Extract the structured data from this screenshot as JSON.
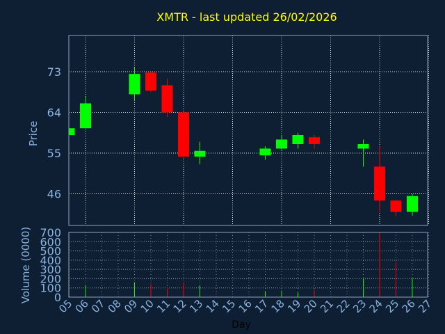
{
  "chart_data": {
    "type": "candlestick",
    "title": "XMTR - last updated 26/02/2026",
    "xlabel": "Day",
    "price_panel": {
      "ylabel": "Price",
      "yticks": [
        46,
        55,
        64,
        73
      ],
      "ylim": [
        39,
        81
      ],
      "grid": true
    },
    "volume_panel": {
      "ylabel": "Volume (0000)",
      "yticks": [
        0,
        100,
        200,
        300,
        400,
        500,
        600,
        700
      ],
      "ylim": [
        0,
        700
      ],
      "grid": true
    },
    "x_ticks": [
      "05",
      "06",
      "07",
      "08",
      "09",
      "10",
      "11",
      "12",
      "13",
      "14",
      "15",
      "16",
      "17",
      "18",
      "19",
      "20",
      "21",
      "22",
      "23",
      "24",
      "25",
      "26",
      "27"
    ],
    "candles": [
      {
        "day": "05",
        "open": 59.0,
        "high": 60.5,
        "low": 59.0,
        "close": 60.5,
        "volume": 0
      },
      {
        "day": "06",
        "open": 60.5,
        "high": 67.5,
        "low": 60.5,
        "close": 66.0,
        "volume": 130
      },
      {
        "day": "09",
        "open": 68.0,
        "high": 74.0,
        "low": 66.5,
        "close": 72.5,
        "volume": 160
      },
      {
        "day": "10",
        "open": 72.8,
        "high": 73.0,
        "low": 68.5,
        "close": 68.8,
        "volume": 140
      },
      {
        "day": "11",
        "open": 70.0,
        "high": 71.5,
        "low": 63.0,
        "close": 64.0,
        "volume": 100
      },
      {
        "day": "12",
        "open": 64.0,
        "high": 64.2,
        "low": 54.0,
        "close": 54.2,
        "volume": 160
      },
      {
        "day": "13",
        "open": 54.2,
        "high": 57.5,
        "low": 52.5,
        "close": 55.5,
        "volume": 130
      },
      {
        "day": "17",
        "open": 54.5,
        "high": 56.5,
        "low": 53.5,
        "close": 56.0,
        "volume": 60
      },
      {
        "day": "18",
        "open": 56.0,
        "high": 59.0,
        "low": 55.8,
        "close": 58.0,
        "volume": 70
      },
      {
        "day": "19",
        "open": 57.0,
        "high": 59.5,
        "low": 56.0,
        "close": 59.0,
        "volume": 50
      },
      {
        "day": "20",
        "open": 58.5,
        "high": 59.0,
        "low": 56.0,
        "close": 57.0,
        "volume": 80
      },
      {
        "day": "23",
        "open": 56.0,
        "high": 58.0,
        "low": 52.0,
        "close": 57.0,
        "volume": 200
      },
      {
        "day": "24",
        "open": 52.0,
        "high": 56.5,
        "low": 42.0,
        "close": 44.5,
        "volume": 700
      },
      {
        "day": "25",
        "open": 44.5,
        "high": 44.6,
        "low": 41.0,
        "close": 42.0,
        "volume": 380
      },
      {
        "day": "26",
        "open": 42.0,
        "high": 46.0,
        "low": 41.2,
        "close": 45.5,
        "volume": 200
      }
    ]
  },
  "colors": {
    "background": "#0f1f33",
    "axis": "#8fa3bd",
    "grid": "#e0e0e0",
    "title": "#ffff00",
    "label": "#8ab4e0",
    "xlabel": "#000000",
    "up": "#00ff00",
    "down": "#ff0000"
  }
}
